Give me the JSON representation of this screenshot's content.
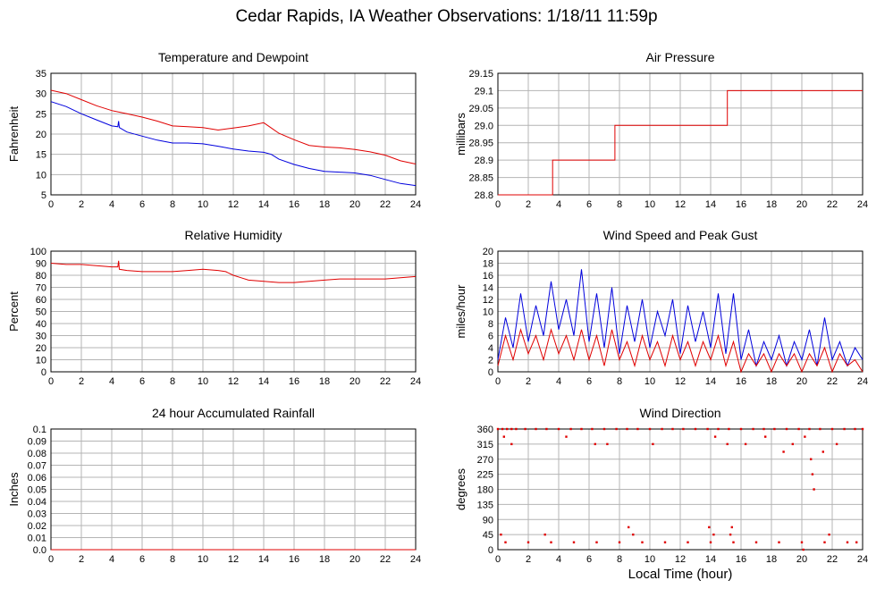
{
  "title": "Cedar Rapids, IA Weather Observations: 1/18/11 11:59p",
  "x_axis_label": "Local Time (hour)",
  "colors": {
    "red": "#e00000",
    "blue": "#0000dd",
    "grid": "#b4b4b4"
  },
  "chart_data": [
    {
      "id": "temp",
      "type": "line",
      "title": "Temperature and Dewpoint",
      "ylabel": "Fahrenheit",
      "xlim": [
        0,
        24
      ],
      "ylim": [
        5,
        35
      ],
      "xticks": [
        0,
        2,
        4,
        6,
        8,
        10,
        12,
        14,
        16,
        18,
        20,
        22,
        24
      ],
      "yticks": [
        5,
        10,
        15,
        20,
        25,
        30,
        35
      ],
      "series": [
        {
          "color": "#e00000",
          "x": [
            0,
            1,
            2,
            3,
            4,
            5,
            6,
            7,
            8,
            9,
            10,
            11,
            12,
            13,
            14,
            14.5,
            15,
            16,
            17,
            18,
            19,
            20,
            21,
            22,
            23,
            24
          ],
          "y": [
            30.8,
            30,
            28.5,
            27,
            25.8,
            25,
            24.2,
            23.2,
            22,
            21.8,
            21.6,
            21,
            21.5,
            22,
            22.8,
            21.5,
            20.2,
            18.6,
            17.2,
            16.8,
            16.6,
            16.2,
            15.6,
            14.8,
            13.4,
            12.6
          ]
        },
        {
          "color": "#0000dd",
          "x": [
            0,
            1,
            2,
            3,
            4,
            4.4,
            4.45,
            4.5,
            5,
            6,
            7,
            8,
            9,
            10,
            11,
            12,
            13,
            14,
            14.5,
            15,
            16,
            17,
            18,
            19,
            20,
            21,
            22,
            23,
            24
          ],
          "y": [
            28,
            26.8,
            25,
            23.5,
            22,
            21.8,
            23.2,
            21.6,
            20.5,
            19.5,
            18.5,
            17.8,
            17.8,
            17.6,
            17,
            16.3,
            15.8,
            15.5,
            15,
            13.8,
            12.5,
            11.5,
            10.8,
            10.6,
            10.4,
            9.8,
            8.8,
            7.8,
            7.3
          ]
        }
      ]
    },
    {
      "id": "pressure",
      "type": "line",
      "title": "Air Pressure",
      "ylabel": "millibars",
      "xlim": [
        0,
        24
      ],
      "ylim": [
        28.8,
        29.15
      ],
      "xticks": [
        0,
        2,
        4,
        6,
        8,
        10,
        12,
        14,
        16,
        18,
        20,
        22,
        24
      ],
      "yticks": [
        28.8,
        28.85,
        28.9,
        28.95,
        29.0,
        29.05,
        29.1,
        29.15
      ],
      "ytick_labels": [
        "28.8",
        "28.85",
        "28.9",
        "28.95",
        "29.0",
        "29.05",
        "29.1",
        "29.15"
      ],
      "series": [
        {
          "color": "#e00000",
          "x": [
            0,
            3.6,
            3.6,
            7.7,
            7.7,
            15.1,
            15.1,
            24
          ],
          "y": [
            28.8,
            28.8,
            28.9,
            28.9,
            29.0,
            29.0,
            29.1,
            29.1
          ]
        }
      ]
    },
    {
      "id": "humidity",
      "type": "line",
      "title": "Relative Humidity",
      "ylabel": "Percent",
      "xlim": [
        0,
        24
      ],
      "ylim": [
        0,
        100
      ],
      "xticks": [
        0,
        2,
        4,
        6,
        8,
        10,
        12,
        14,
        16,
        18,
        20,
        22,
        24
      ],
      "yticks": [
        0,
        10,
        20,
        30,
        40,
        50,
        60,
        70,
        80,
        90,
        100
      ],
      "series": [
        {
          "color": "#e00000",
          "x": [
            0,
            1,
            2,
            3,
            4,
            4.4,
            4.45,
            4.5,
            5,
            6,
            7,
            8,
            9,
            10,
            11,
            11.5,
            12,
            12.5,
            13,
            14,
            15,
            16,
            17,
            18,
            19,
            20,
            21,
            22,
            23,
            24
          ],
          "y": [
            90,
            89,
            89,
            88,
            87,
            87,
            92,
            85,
            84,
            83,
            83,
            83,
            84,
            85,
            84,
            83,
            80,
            78,
            76,
            75,
            74,
            74,
            75,
            76,
            77,
            77,
            77,
            77,
            78,
            79
          ]
        }
      ]
    },
    {
      "id": "wind",
      "type": "line",
      "title": "Wind Speed and Peak Gust",
      "ylabel": "miles/hour",
      "xlim": [
        0,
        24
      ],
      "ylim": [
        0,
        20
      ],
      "xticks": [
        0,
        2,
        4,
        6,
        8,
        10,
        12,
        14,
        16,
        18,
        20,
        22,
        24
      ],
      "yticks": [
        0,
        2,
        4,
        6,
        8,
        10,
        12,
        14,
        16,
        18,
        20
      ],
      "series": [
        {
          "color": "#0000dd",
          "x": [
            0,
            0.5,
            1,
            1.5,
            2,
            2.5,
            3,
            3.5,
            4,
            4.5,
            5,
            5.5,
            6,
            6.5,
            7,
            7.5,
            8,
            8.5,
            9,
            9.5,
            10,
            10.5,
            11,
            11.5,
            12,
            12.5,
            13,
            13.5,
            14,
            14.5,
            15,
            15.5,
            16,
            16.5,
            17,
            17.5,
            18,
            18.5,
            19,
            19.5,
            20,
            20.5,
            21,
            21.5,
            22,
            22.5,
            23,
            23.5,
            24
          ],
          "y": [
            2,
            9,
            4,
            13,
            5,
            11,
            6,
            15,
            7,
            12,
            6,
            17,
            5,
            13,
            4,
            14,
            3,
            11,
            5,
            12,
            4,
            10,
            6,
            12,
            3,
            11,
            5,
            10,
            4,
            13,
            3,
            13,
            2,
            7,
            1,
            5,
            2,
            6,
            1,
            5,
            2,
            7,
            1,
            9,
            2,
            5,
            1,
            4,
            2
          ]
        },
        {
          "color": "#e00000",
          "x": [
            0,
            0.5,
            1,
            1.5,
            2,
            2.5,
            3,
            3.5,
            4,
            4.5,
            5,
            5.5,
            6,
            6.5,
            7,
            7.5,
            8,
            8.5,
            9,
            9.5,
            10,
            10.5,
            11,
            11.5,
            12,
            12.5,
            13,
            13.5,
            14,
            14.5,
            15,
            15.5,
            16,
            16.5,
            17,
            17.5,
            18,
            18.5,
            19,
            19.5,
            20,
            20.5,
            21,
            21.5,
            22,
            22.5,
            23,
            23.5,
            24
          ],
          "y": [
            1,
            6,
            2,
            7,
            3,
            6,
            2,
            7,
            3,
            6,
            2,
            7,
            2,
            6,
            1,
            7,
            2,
            5,
            1,
            6,
            2,
            5,
            1,
            6,
            2,
            5,
            1,
            5,
            2,
            6,
            1,
            5,
            0,
            3,
            1,
            3,
            0,
            3,
            1,
            3,
            0,
            3,
            1,
            4,
            0,
            3,
            1,
            2,
            0
          ]
        }
      ]
    },
    {
      "id": "rain",
      "type": "line",
      "title": "24 hour Accumulated Rainfall",
      "ylabel": "Inches",
      "xlim": [
        0,
        24
      ],
      "ylim": [
        0,
        0.1
      ],
      "xticks": [
        0,
        2,
        4,
        6,
        8,
        10,
        12,
        14,
        16,
        18,
        20,
        22,
        24
      ],
      "yticks": [
        0,
        0.01,
        0.02,
        0.03,
        0.04,
        0.05,
        0.06,
        0.07,
        0.08,
        0.09,
        0.1
      ],
      "ytick_labels": [
        "0.0",
        "0.01",
        "0.02",
        "0.03",
        "0.04",
        "0.05",
        "0.06",
        "0.07",
        "0.08",
        "0.09",
        "0.1"
      ],
      "series": [
        {
          "color": "#e00000",
          "x": [
            0,
            24
          ],
          "y": [
            0,
            0
          ]
        }
      ]
    },
    {
      "id": "direction",
      "type": "scatter",
      "title": "Wind Direction",
      "ylabel": "degrees",
      "xlim": [
        0,
        24
      ],
      "ylim": [
        0,
        360
      ],
      "xticks": [
        0,
        2,
        4,
        6,
        8,
        10,
        12,
        14,
        16,
        18,
        20,
        22,
        24
      ],
      "yticks": [
        0,
        45,
        90,
        135,
        180,
        225,
        270,
        315,
        360
      ],
      "series": [
        {
          "color": "#e00000",
          "x": [
            0,
            0.3,
            0.6,
            0.9,
            1.2,
            1.8,
            2.5,
            3.2,
            4,
            4.8,
            5.5,
            6.2,
            7,
            7.8,
            8.5,
            9.2,
            10,
            10.8,
            11.5,
            12.2,
            13,
            13.8,
            14.5,
            15.2,
            16,
            16.8,
            17.5,
            18.2,
            19,
            19.8,
            20.5,
            21.2,
            22,
            22.8,
            23.5,
            24,
            0.5,
            2,
            3.5,
            5,
            6.5,
            8,
            9.5,
            11,
            12.5,
            14,
            15.5,
            17,
            18.5,
            20,
            21.5,
            23,
            0.4,
            0.9,
            4.5,
            6.4,
            7.2,
            10.2,
            14.3,
            15.1,
            16.3,
            17.6,
            18.8,
            19.4,
            20.2,
            20.6,
            20.7,
            20.8,
            21.4,
            22.3,
            0.2,
            3.1,
            8.9,
            14.2,
            15.3,
            20.1,
            21.8,
            23.6,
            8.6,
            13.9,
            15.4
          ],
          "y": [
            360,
            360,
            360,
            360,
            360,
            360,
            360,
            360,
            360,
            360,
            360,
            360,
            360,
            360,
            360,
            360,
            360,
            360,
            360,
            360,
            360,
            360,
            360,
            360,
            360,
            360,
            360,
            360,
            360,
            360,
            360,
            360,
            360,
            360,
            360,
            360,
            22,
            22,
            22,
            22,
            22,
            22,
            22,
            22,
            22,
            22,
            22,
            22,
            22,
            22,
            22,
            22,
            337,
            315,
            337,
            315,
            315,
            315,
            337,
            315,
            315,
            337,
            292,
            315,
            337,
            270,
            225,
            180,
            292,
            315,
            45,
            45,
            45,
            45,
            45,
            0,
            45,
            22,
            67,
            67,
            67
          ]
        }
      ]
    }
  ]
}
